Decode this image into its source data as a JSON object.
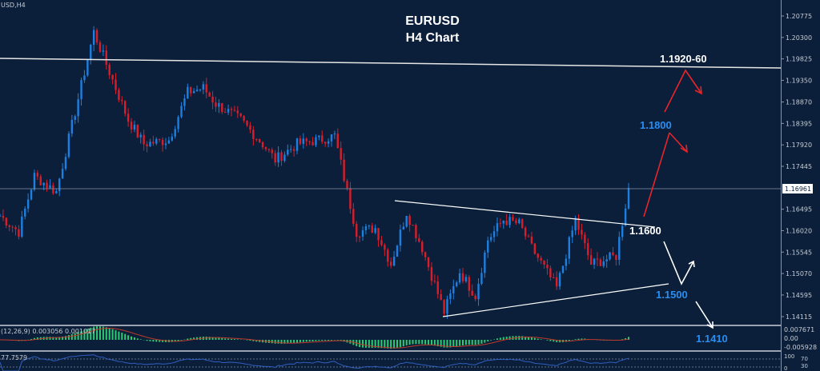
{
  "symbol_label": "USD,H4",
  "title_line1": "EURUSD",
  "title_line2": "H4 Chart",
  "colors": {
    "background": "#0b1f3a",
    "bull": "#1e7fe0",
    "bear": "#d81e2a",
    "annotation_blue": "#2a8ef0",
    "annotation_red": "#e8242a",
    "macd_hist": "#2ecc71",
    "macd_signal": "#c0392b",
    "rsi": "#2f5fbf"
  },
  "chart_data": {
    "type": "candlestick",
    "ylim": [
      1.1385,
      1.211
    ],
    "y_ticks": [
      "1.20775",
      "1.20300",
      "1.19825",
      "1.19350",
      "1.18870",
      "1.18395",
      "1.17920",
      "1.17445",
      "1.16495",
      "1.16020",
      "1.15545",
      "1.15070",
      "1.14595",
      "1.14115"
    ],
    "current_price": "1.16961",
    "price_path_approx": [
      [
        0,
        1.1635
      ],
      [
        6,
        1.1599
      ],
      [
        11,
        1.1723
      ],
      [
        18,
        1.1688
      ],
      [
        24,
        1.1865
      ],
      [
        30,
        1.2042
      ],
      [
        34,
        1.1971
      ],
      [
        41,
        1.1847
      ],
      [
        46,
        1.1794
      ],
      [
        54,
        1.1803
      ],
      [
        60,
        1.1909
      ],
      [
        65,
        1.1918
      ],
      [
        69,
        1.1883
      ],
      [
        77,
        1.1847
      ],
      [
        84,
        1.1794
      ],
      [
        88,
        1.1759
      ],
      [
        95,
        1.1794
      ],
      [
        102,
        1.1803
      ],
      [
        107,
        1.1812
      ],
      [
        111,
        1.1688
      ],
      [
        114,
        1.1599
      ],
      [
        120,
        1.1608
      ],
      [
        125,
        1.1528
      ],
      [
        130,
        1.1643
      ],
      [
        135,
        1.1564
      ],
      [
        142,
        1.1422
      ],
      [
        147,
        1.1511
      ],
      [
        152,
        1.1458
      ],
      [
        156,
        1.1582
      ],
      [
        161,
        1.1626
      ],
      [
        166,
        1.1617
      ],
      [
        170,
        1.1564
      ],
      [
        178,
        1.1475
      ],
      [
        184,
        1.1626
      ],
      [
        189,
        1.1528
      ],
      [
        197,
        1.1546
      ],
      [
        201,
        1.1696
      ]
    ],
    "horizontal_resistance": "1.1920-60",
    "annotations": [
      {
        "label": "1.1920-60",
        "color": "white"
      },
      {
        "label": "1.1800",
        "color": "blue"
      },
      {
        "label": "1.1600",
        "color": "white"
      },
      {
        "label": "1.1500",
        "color": "blue"
      },
      {
        "label": "1.1410",
        "color": "blue"
      }
    ]
  },
  "macd": {
    "label": "(12,26,9) 0.003056 0.001017",
    "ticks": [
      "0.007671",
      "0.00",
      "-0.005928"
    ]
  },
  "rsi": {
    "label": "77.7579",
    "ticks": [
      "100",
      "70",
      "30",
      "0"
    ]
  }
}
